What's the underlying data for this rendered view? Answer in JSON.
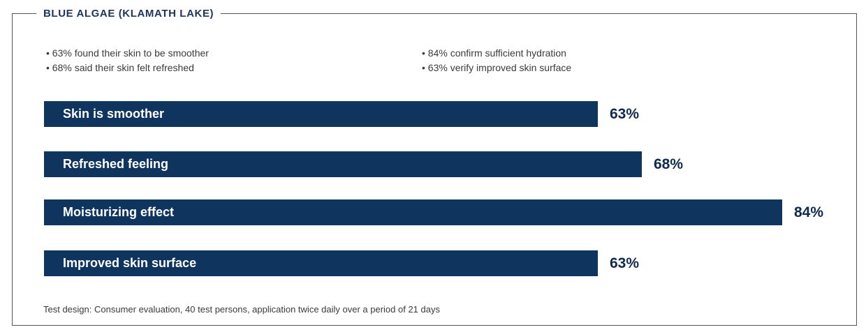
{
  "title": "BLUE ALGAE (KLAMATH LAKE)",
  "bullets_left": [
    "63% found their skin to be smoother",
    "68% said their skin felt refreshed"
  ],
  "bullets_right": [
    "84% confirm sufficient hydration",
    "63% verify improved skin surface"
  ],
  "footnote": "Test design: Consumer evaluation, 40 test persons, application twice daily over a period of 21 days",
  "colors": {
    "bar": "#0f355e",
    "text_dark": "#0f2a4a"
  },
  "chart_data": {
    "type": "bar",
    "orientation": "horizontal",
    "categories": [
      "Skin is smoother",
      "Refreshed feeling",
      "Moisturizing effect",
      "Improved skin surface"
    ],
    "values": [
      63,
      68,
      84,
      63
    ],
    "value_labels": [
      "63%",
      "68%",
      "84%",
      "63%"
    ],
    "unit": "%"
  }
}
